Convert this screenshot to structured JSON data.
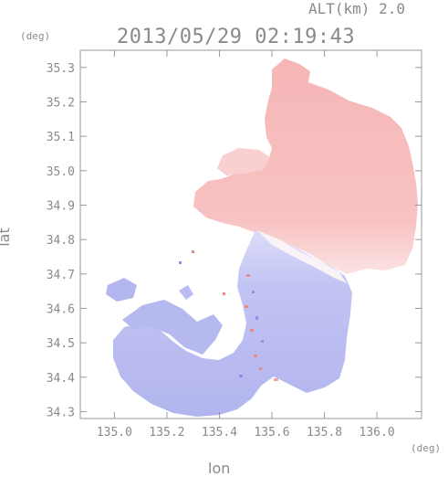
{
  "header": {
    "altitude_label": "ALT(km) 2.0",
    "timestamp": "2013/05/29 02:19:43"
  },
  "axes": {
    "x_unit": "(deg)",
    "y_unit": "(deg)",
    "x_label": "lon",
    "y_label": "lat"
  },
  "chart_data": {
    "type": "heatmap",
    "xlabel": "lon",
    "ylabel": "lat",
    "xlim": [
      134.87,
      136.17
    ],
    "ylim": [
      34.28,
      35.35
    ],
    "x_ticks": [
      "135.0",
      "135.2",
      "135.4",
      "135.6",
      "135.8",
      "136.0"
    ],
    "y_ticks": [
      "34.3",
      "34.4",
      "34.5",
      "34.6",
      "34.7",
      "34.8",
      "34.9",
      "35.0",
      "35.1",
      "35.2",
      "35.3"
    ],
    "x_tick_values": [
      135.0,
      135.2,
      135.4,
      135.6,
      135.8,
      136.0
    ],
    "y_tick_values": [
      34.3,
      34.4,
      34.5,
      34.6,
      34.7,
      34.8,
      34.9,
      35.0,
      35.1,
      35.2,
      35.3
    ],
    "colors": {
      "positive": "#f6b4b4",
      "positive_light": "#f9cccc",
      "negative": "#b4b6f0",
      "negative_light": "#cacbf4",
      "axis": "#9a9a9a"
    }
  }
}
